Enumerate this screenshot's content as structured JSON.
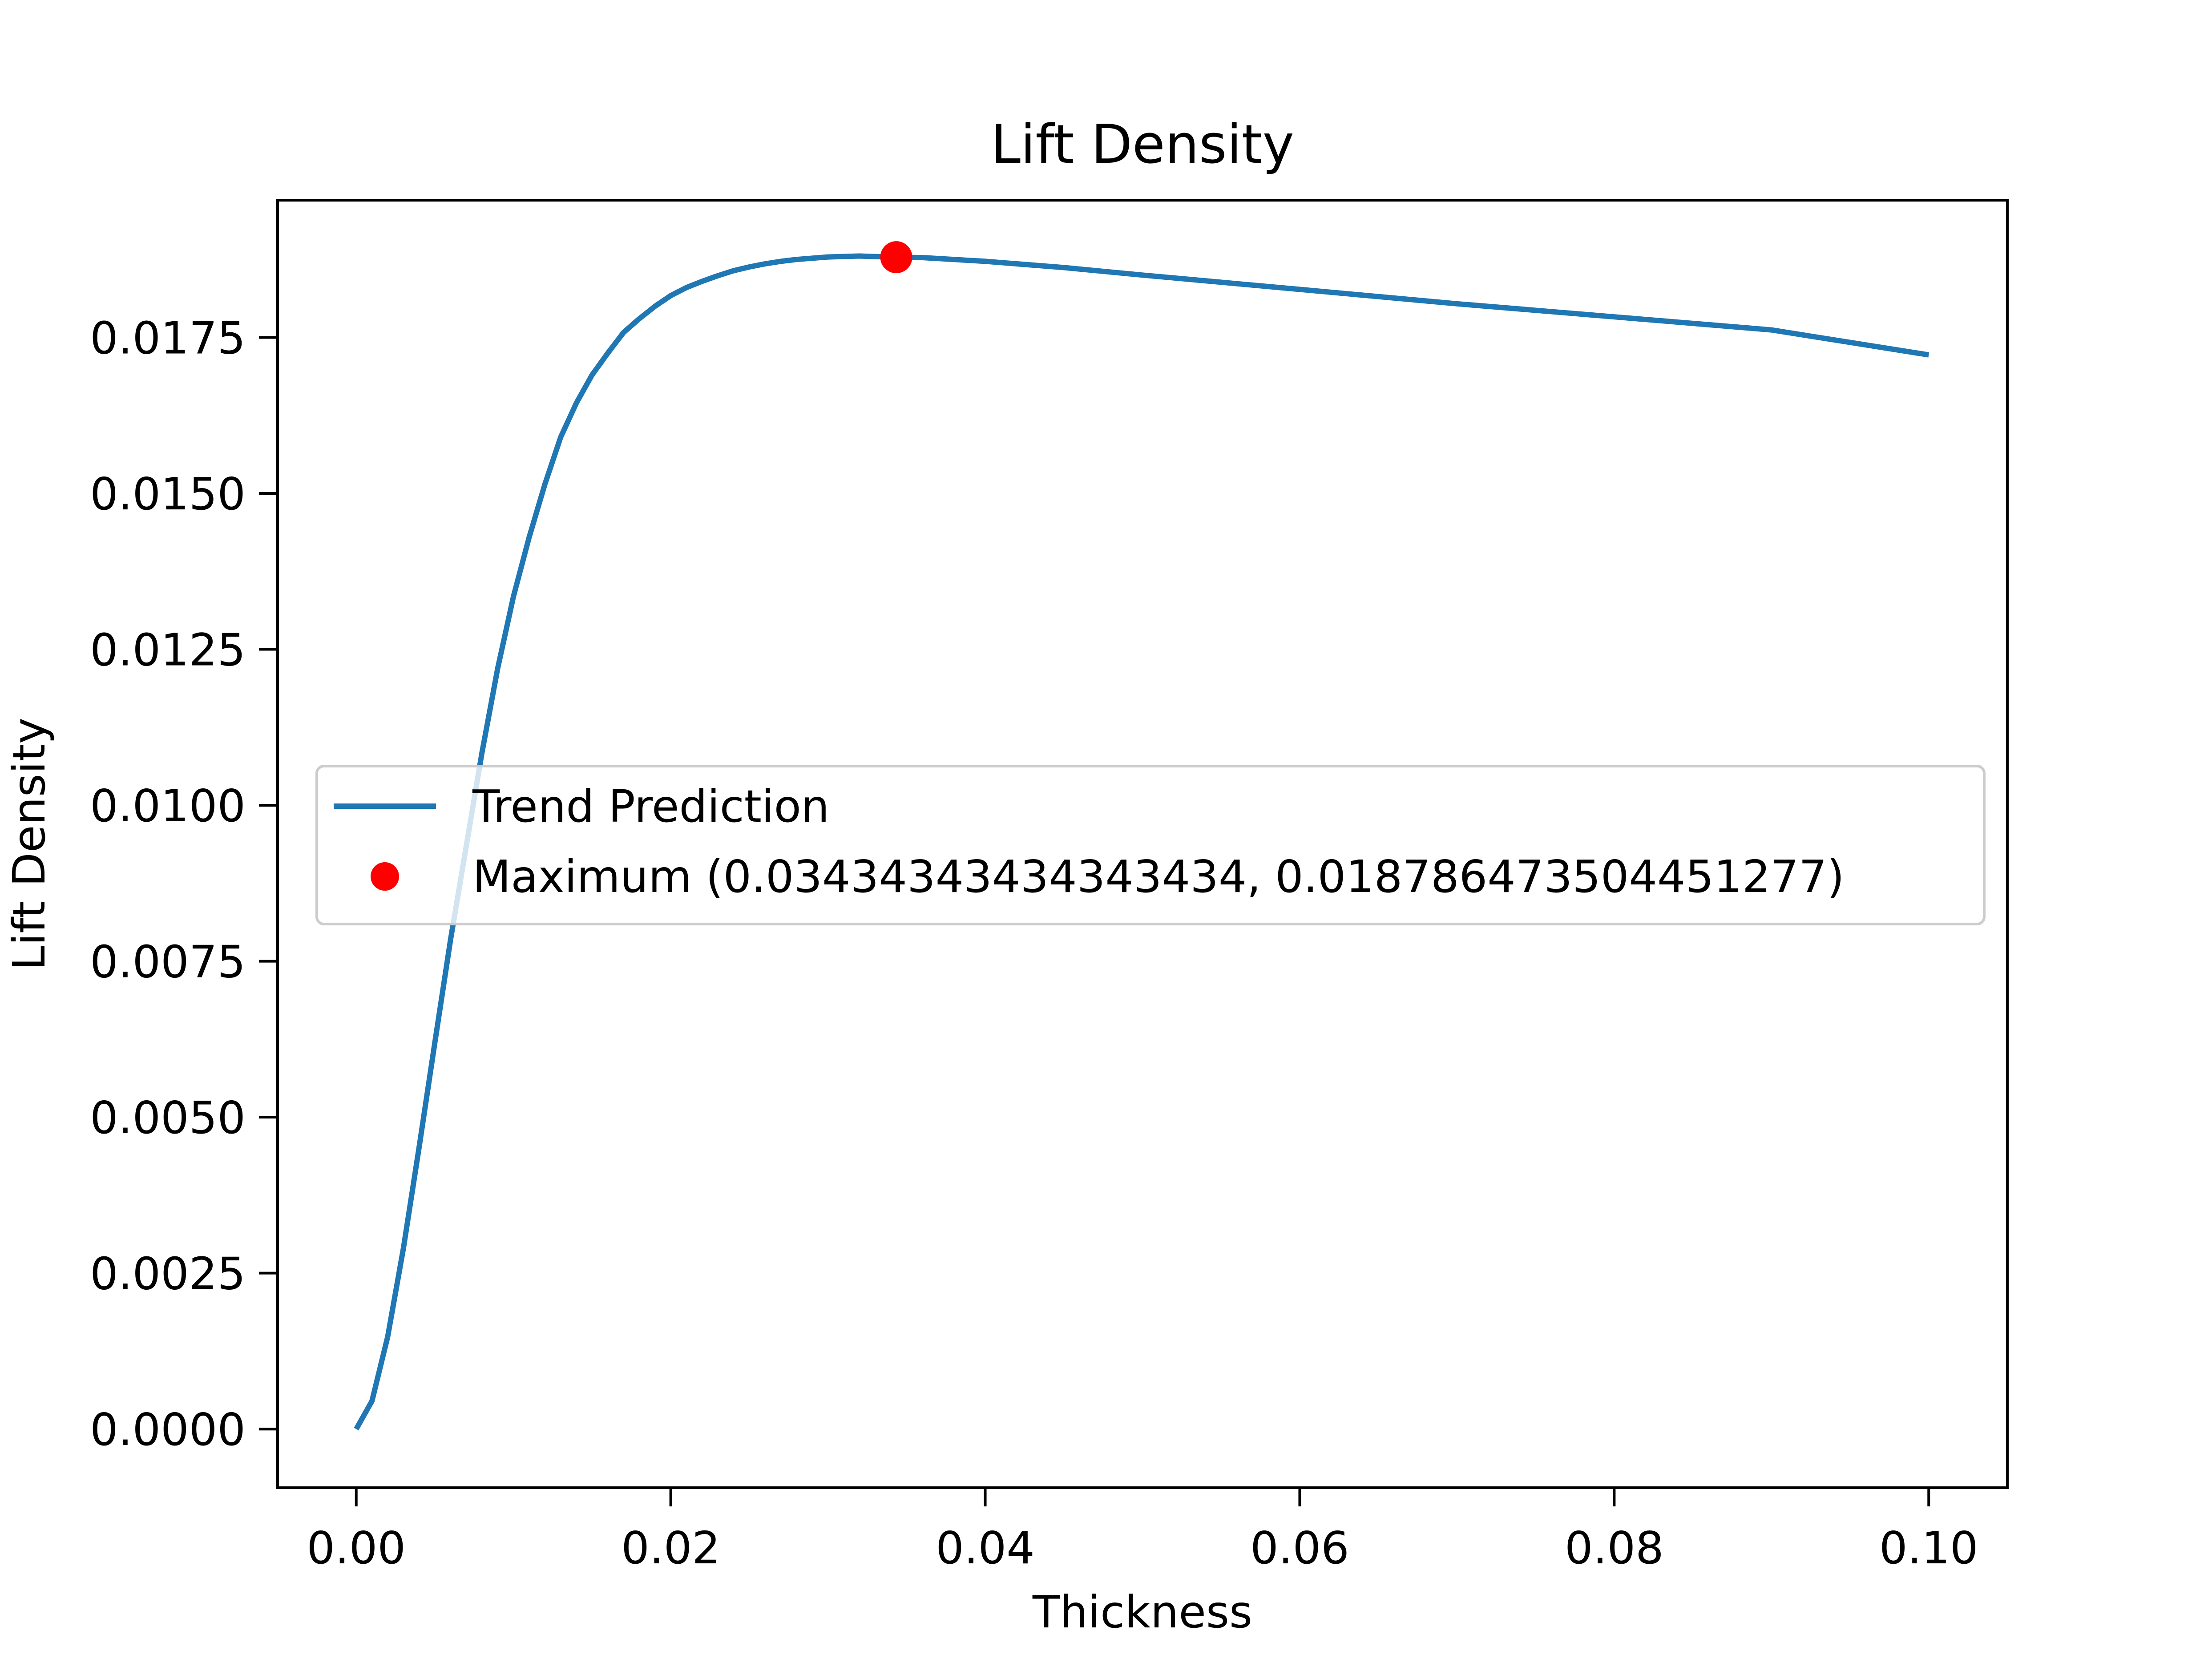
{
  "chart_data": {
    "type": "line",
    "title": "Lift Density",
    "xlabel": "Thickness",
    "ylabel": "Lift Density",
    "xlim": [
      -0.005,
      0.105
    ],
    "ylim": [
      -0.00094,
      0.0197
    ],
    "xticks": [
      0.0,
      0.02,
      0.04,
      0.06,
      0.08,
      0.1
    ],
    "xtick_labels": [
      "0.00",
      "0.02",
      "0.04",
      "0.06",
      "0.08",
      "0.10"
    ],
    "yticks": [
      0.0,
      0.0025,
      0.005,
      0.0075,
      0.01,
      0.0125,
      0.015,
      0.0175
    ],
    "ytick_labels": [
      "0.0000",
      "0.0025",
      "0.0050",
      "0.0075",
      "0.0100",
      "0.0125",
      "0.0150",
      "0.0175"
    ],
    "grid": false,
    "legend_position": "center-right",
    "series": [
      {
        "name": "Trend Prediction",
        "color": "#1f77b4",
        "style": "line",
        "x": [
          0.0,
          0.001,
          0.002,
          0.003,
          0.004,
          0.005,
          0.006,
          0.007,
          0.008,
          0.009,
          0.01,
          0.011,
          0.012,
          0.013,
          0.014,
          0.015,
          0.016,
          0.017,
          0.018,
          0.019,
          0.02,
          0.021,
          0.022,
          0.023,
          0.024,
          0.025,
          0.026,
          0.027,
          0.028,
          0.029,
          0.03,
          0.032,
          0.0343,
          0.036,
          0.04,
          0.045,
          0.05,
          0.06,
          0.07,
          0.08,
          0.09,
          0.1
        ],
        "y": [
          0.0,
          0.00045,
          0.00148,
          0.0029,
          0.00452,
          0.0062,
          0.00785,
          0.00935,
          0.01085,
          0.0122,
          0.01335,
          0.0143,
          0.01515,
          0.0159,
          0.01645,
          0.0169,
          0.01725,
          0.01758,
          0.0178,
          0.018,
          0.01817,
          0.0183,
          0.0184,
          0.01849,
          0.01857,
          0.01863,
          0.01868,
          0.01872,
          0.01875,
          0.01877,
          0.01879,
          0.018805,
          0.018786,
          0.01878,
          0.01872,
          0.01862,
          0.0185,
          0.01827,
          0.01804,
          0.01783,
          0.01762,
          0.01722
        ]
      },
      {
        "name": "Maximum (0.03434343434343434, 0.018786473504451277)",
        "color": "#ff0000",
        "style": "marker",
        "x": [
          0.03434343434343434
        ],
        "y": [
          0.018786473504451277
        ]
      }
    ]
  }
}
